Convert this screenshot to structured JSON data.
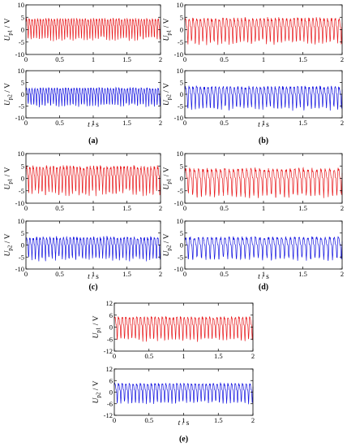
{
  "chart_data": [
    {
      "type": "line",
      "panel_label": "(a)",
      "xlabel": "t / s",
      "xlim": [
        0,
        2
      ],
      "x_ticks": [
        "0",
        "0.5",
        "1",
        "1.5",
        "2"
      ],
      "subplots": [
        {
          "ylabel": "U_p1 / V",
          "ylim": [
            -10,
            10
          ],
          "y_ticks": [
            "10",
            "5",
            "0",
            "-5",
            "-10"
          ],
          "series": [
            {
              "color": "#e8191c",
              "center": 1.5,
              "amplitude": 5,
              "cycles": 48,
              "jitter": 0.18
            }
          ]
        },
        {
          "ylabel": "U_p2 / V",
          "ylim": [
            -10,
            10
          ],
          "y_ticks": [
            "10",
            "5",
            "0",
            "-5",
            "-10"
          ],
          "series": [
            {
              "color": "#1414e0",
              "center": 0,
              "amplitude": 4.5,
              "cycles": 48,
              "jitter": 0.18
            }
          ]
        }
      ]
    },
    {
      "type": "line",
      "panel_label": "(b)",
      "xlabel": "t / s",
      "xlim": [
        0,
        2
      ],
      "x_ticks": [
        "0",
        "0.5",
        "1",
        "1.5",
        "2"
      ],
      "subplots": [
        {
          "ylabel": "U_p1 / V",
          "ylim": [
            -10,
            10
          ],
          "y_ticks": [
            "10",
            "5",
            "0",
            "-5",
            "-10"
          ],
          "series": [
            {
              "color": "#e8191c",
              "center": 1,
              "amplitude": 6,
              "cycles": 42,
              "jitter": 0.22
            }
          ]
        },
        {
          "ylabel": "U_p2 / V",
          "ylim": [
            -10,
            10
          ],
          "y_ticks": [
            "10",
            "5",
            "0",
            "-5",
            "-10"
          ],
          "series": [
            {
              "color": "#1414e0",
              "center": 0,
              "amplitude": 5.5,
              "cycles": 42,
              "jitter": 0.22
            }
          ]
        }
      ]
    },
    {
      "type": "line",
      "panel_label": "(c)",
      "xlabel": "t / s",
      "xlim": [
        0,
        2
      ],
      "x_ticks": [
        "0",
        "0.5",
        "1",
        "1.5",
        "2"
      ],
      "subplots": [
        {
          "ylabel": "U_p1 / V",
          "ylim": [
            -10,
            10
          ],
          "y_ticks": [
            "10",
            "5",
            "0",
            "-5",
            "-10"
          ],
          "series": [
            {
              "color": "#e8191c",
              "center": 1,
              "amplitude": 6.5,
              "cycles": 40,
              "jitter": 0.22
            }
          ]
        },
        {
          "ylabel": "U_p2 / V",
          "ylim": [
            -10,
            10
          ],
          "y_ticks": [
            "10",
            "5",
            "0",
            "-5",
            "-10"
          ],
          "series": [
            {
              "color": "#1414e0",
              "center": 0,
              "amplitude": 5.5,
              "cycles": 40,
              "jitter": 0.22
            }
          ]
        }
      ]
    },
    {
      "type": "line",
      "panel_label": "(d)",
      "xlabel": "t / s",
      "xlim": [
        0,
        2
      ],
      "x_ticks": [
        "0",
        "0.5",
        "1",
        "1.5",
        "2"
      ],
      "subplots": [
        {
          "ylabel": "U_p1 / V",
          "ylim": [
            -10,
            10
          ],
          "y_ticks": [
            "10",
            "5",
            "0",
            "-5",
            "-10"
          ],
          "series": [
            {
              "color": "#e8191c",
              "center": 0,
              "amplitude": 6.5,
              "cycles": 36,
              "jitter": 0.2
            }
          ]
        },
        {
          "ylabel": "U_p2 / V",
          "ylim": [
            -10,
            10
          ],
          "y_ticks": [
            "10",
            "5",
            "0",
            "-5",
            "-10"
          ],
          "series": [
            {
              "color": "#1414e0",
              "center": 0,
              "amplitude": 5.5,
              "cycles": 36,
              "jitter": 0.2
            }
          ]
        }
      ]
    },
    {
      "type": "line",
      "panel_label": "(e)",
      "xlabel": "t / s",
      "xlim": [
        0,
        2
      ],
      "x_ticks": [
        "0",
        "0.5",
        "1",
        "1.5",
        "2"
      ],
      "subplots": [
        {
          "ylabel": "U_p1 / V",
          "ylim": [
            -12,
            12
          ],
          "y_ticks": [
            "12",
            "6",
            "0",
            "-6",
            "-12"
          ],
          "series": [
            {
              "color": "#e8191c",
              "center": 1,
              "amplitude": 7,
              "cycles": 38,
              "jitter": 0.15
            }
          ]
        },
        {
          "ylabel": "U_p2 / V",
          "ylim": [
            -12,
            12
          ],
          "y_ticks": [
            "12",
            "6",
            "0",
            "-6",
            "-12"
          ],
          "series": [
            {
              "color": "#1414e0",
              "center": 1,
              "amplitude": 6,
              "cycles": 38,
              "jitter": 0.15
            }
          ]
        }
      ]
    }
  ]
}
